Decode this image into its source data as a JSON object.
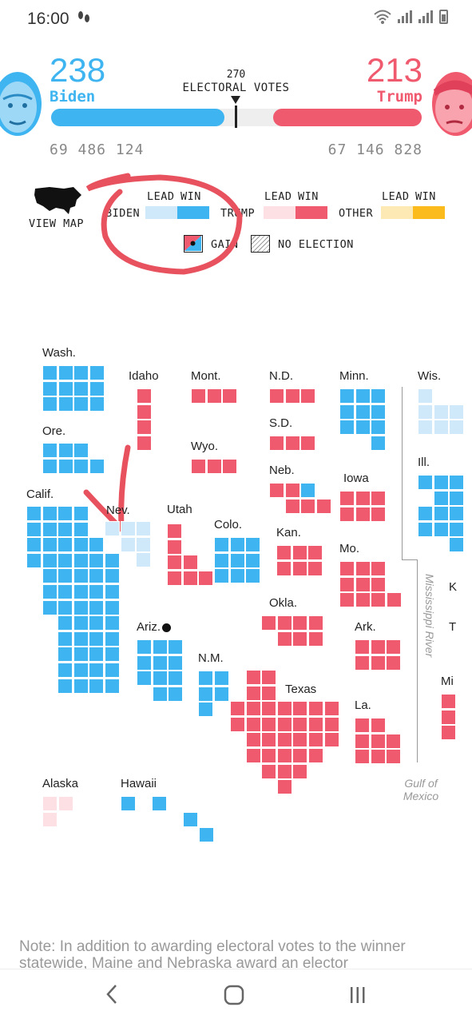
{
  "status": {
    "time": "16:00",
    "notif_icon": "footsteps-icon"
  },
  "header": {
    "biden_ev": "238",
    "biden_name": "Biden",
    "trump_ev": "213",
    "trump_name": "Trump",
    "threshold": "270",
    "threshold_label": "ELECTORAL VOTES",
    "biden_popular": "69 486 124",
    "trump_popular": "67 146 828",
    "biden_share": 0.468,
    "trump_share": 0.4
  },
  "legend": {
    "view_map": "VIEW MAP",
    "biden": "BIDEN",
    "trump": "TRUMP",
    "other": "OTHER",
    "lead": "LEAD",
    "win": "WIN",
    "gain": "GAIN",
    "no_election": "NO ELECTION"
  },
  "colors": {
    "biden_win": "#3eb4f0",
    "biden_lead": "#cfe8fa",
    "trump_win": "#f05a6e",
    "trump_lead": "#fde0e4",
    "other_win": "#fbbb1c",
    "other_lead": "#fde9b4"
  },
  "states": [
    {
      "label": "Wash.",
      "status": "biden_win"
    },
    {
      "label": "Ore.",
      "status": "biden_win"
    },
    {
      "label": "Calif.",
      "status": "biden_win"
    },
    {
      "label": "Idaho",
      "status": "trump_win"
    },
    {
      "label": "Nev.",
      "status": "biden_lead"
    },
    {
      "label": "Mont.",
      "status": "trump_win"
    },
    {
      "label": "Wyo.",
      "status": "trump_win"
    },
    {
      "label": "Utah",
      "status": "trump_win"
    },
    {
      "label": "Colo.",
      "status": "biden_win"
    },
    {
      "label": "Ariz.",
      "status": "biden_win"
    },
    {
      "label": "N.M.",
      "status": "biden_win"
    },
    {
      "label": "N.D.",
      "status": "trump_win"
    },
    {
      "label": "S.D.",
      "status": "trump_win"
    },
    {
      "label": "Neb.",
      "status": "trump_win"
    },
    {
      "label": "Kan.",
      "status": "trump_win"
    },
    {
      "label": "Okla.",
      "status": "trump_win"
    },
    {
      "label": "Texas",
      "status": "trump_win"
    },
    {
      "label": "Minn.",
      "status": "biden_win"
    },
    {
      "label": "Iowa",
      "status": "trump_win"
    },
    {
      "label": "Mo.",
      "status": "trump_win"
    },
    {
      "label": "Ark.",
      "status": "trump_win"
    },
    {
      "label": "La.",
      "status": "trump_win"
    },
    {
      "label": "Wis.",
      "status": "biden_lead"
    },
    {
      "label": "Ill.",
      "status": "biden_win"
    },
    {
      "label": "Mi",
      "status": "trump_win"
    },
    {
      "label": "K",
      "status": "trump_win"
    },
    {
      "label": "T",
      "status": "trump_win"
    },
    {
      "label": "Alaska",
      "status": "trump_lead"
    },
    {
      "label": "Hawaii",
      "status": "biden_win"
    }
  ],
  "map_labels": {
    "river": "Mississippi River",
    "gulf": "Gulf of Mexico"
  },
  "note": "Note: In addition to awarding electoral votes to the winner statewide, Maine and Nebraska award an elector"
}
